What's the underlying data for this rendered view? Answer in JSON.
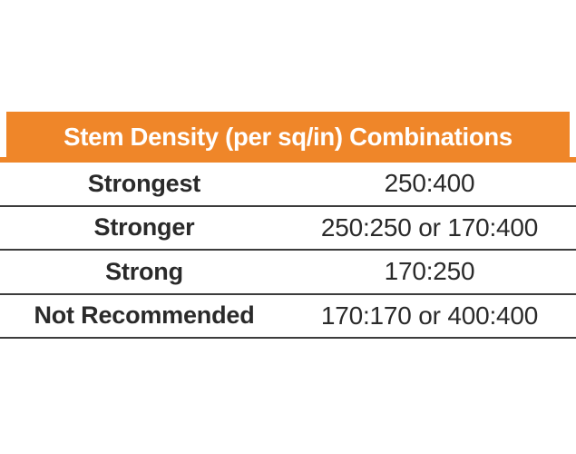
{
  "header": {
    "title": "Stem Density (per sq/in) Combinations"
  },
  "table": {
    "rows": [
      {
        "label": "Strongest",
        "value": "250:400"
      },
      {
        "label": "Stronger",
        "value": "250:250 or 170:400"
      },
      {
        "label": "Strong",
        "value": "170:250"
      },
      {
        "label": "Not Recommended",
        "value": "170:170 or 400:400"
      }
    ]
  },
  "chart_data": {
    "type": "table",
    "title": "Stem Density (per sq/in) Combinations",
    "rows": [
      [
        "Strongest",
        "250:400"
      ],
      [
        "Stronger",
        "250:250 or 170:400"
      ],
      [
        "Strong",
        "170:250"
      ],
      [
        "Not Recommended",
        "170:170 or 400:400"
      ]
    ],
    "layout_hints": {
      "header_bg": "#EF8629",
      "header_text_color": "#FFFFFF",
      "row_dividers": true,
      "label_column_align": "center",
      "value_column_align": "center"
    }
  },
  "colors": {
    "accent_orange": "#EF8629",
    "text_dark": "#2A2A2A",
    "divider": "#3C3C3C",
    "background": "#FFFFFF"
  }
}
